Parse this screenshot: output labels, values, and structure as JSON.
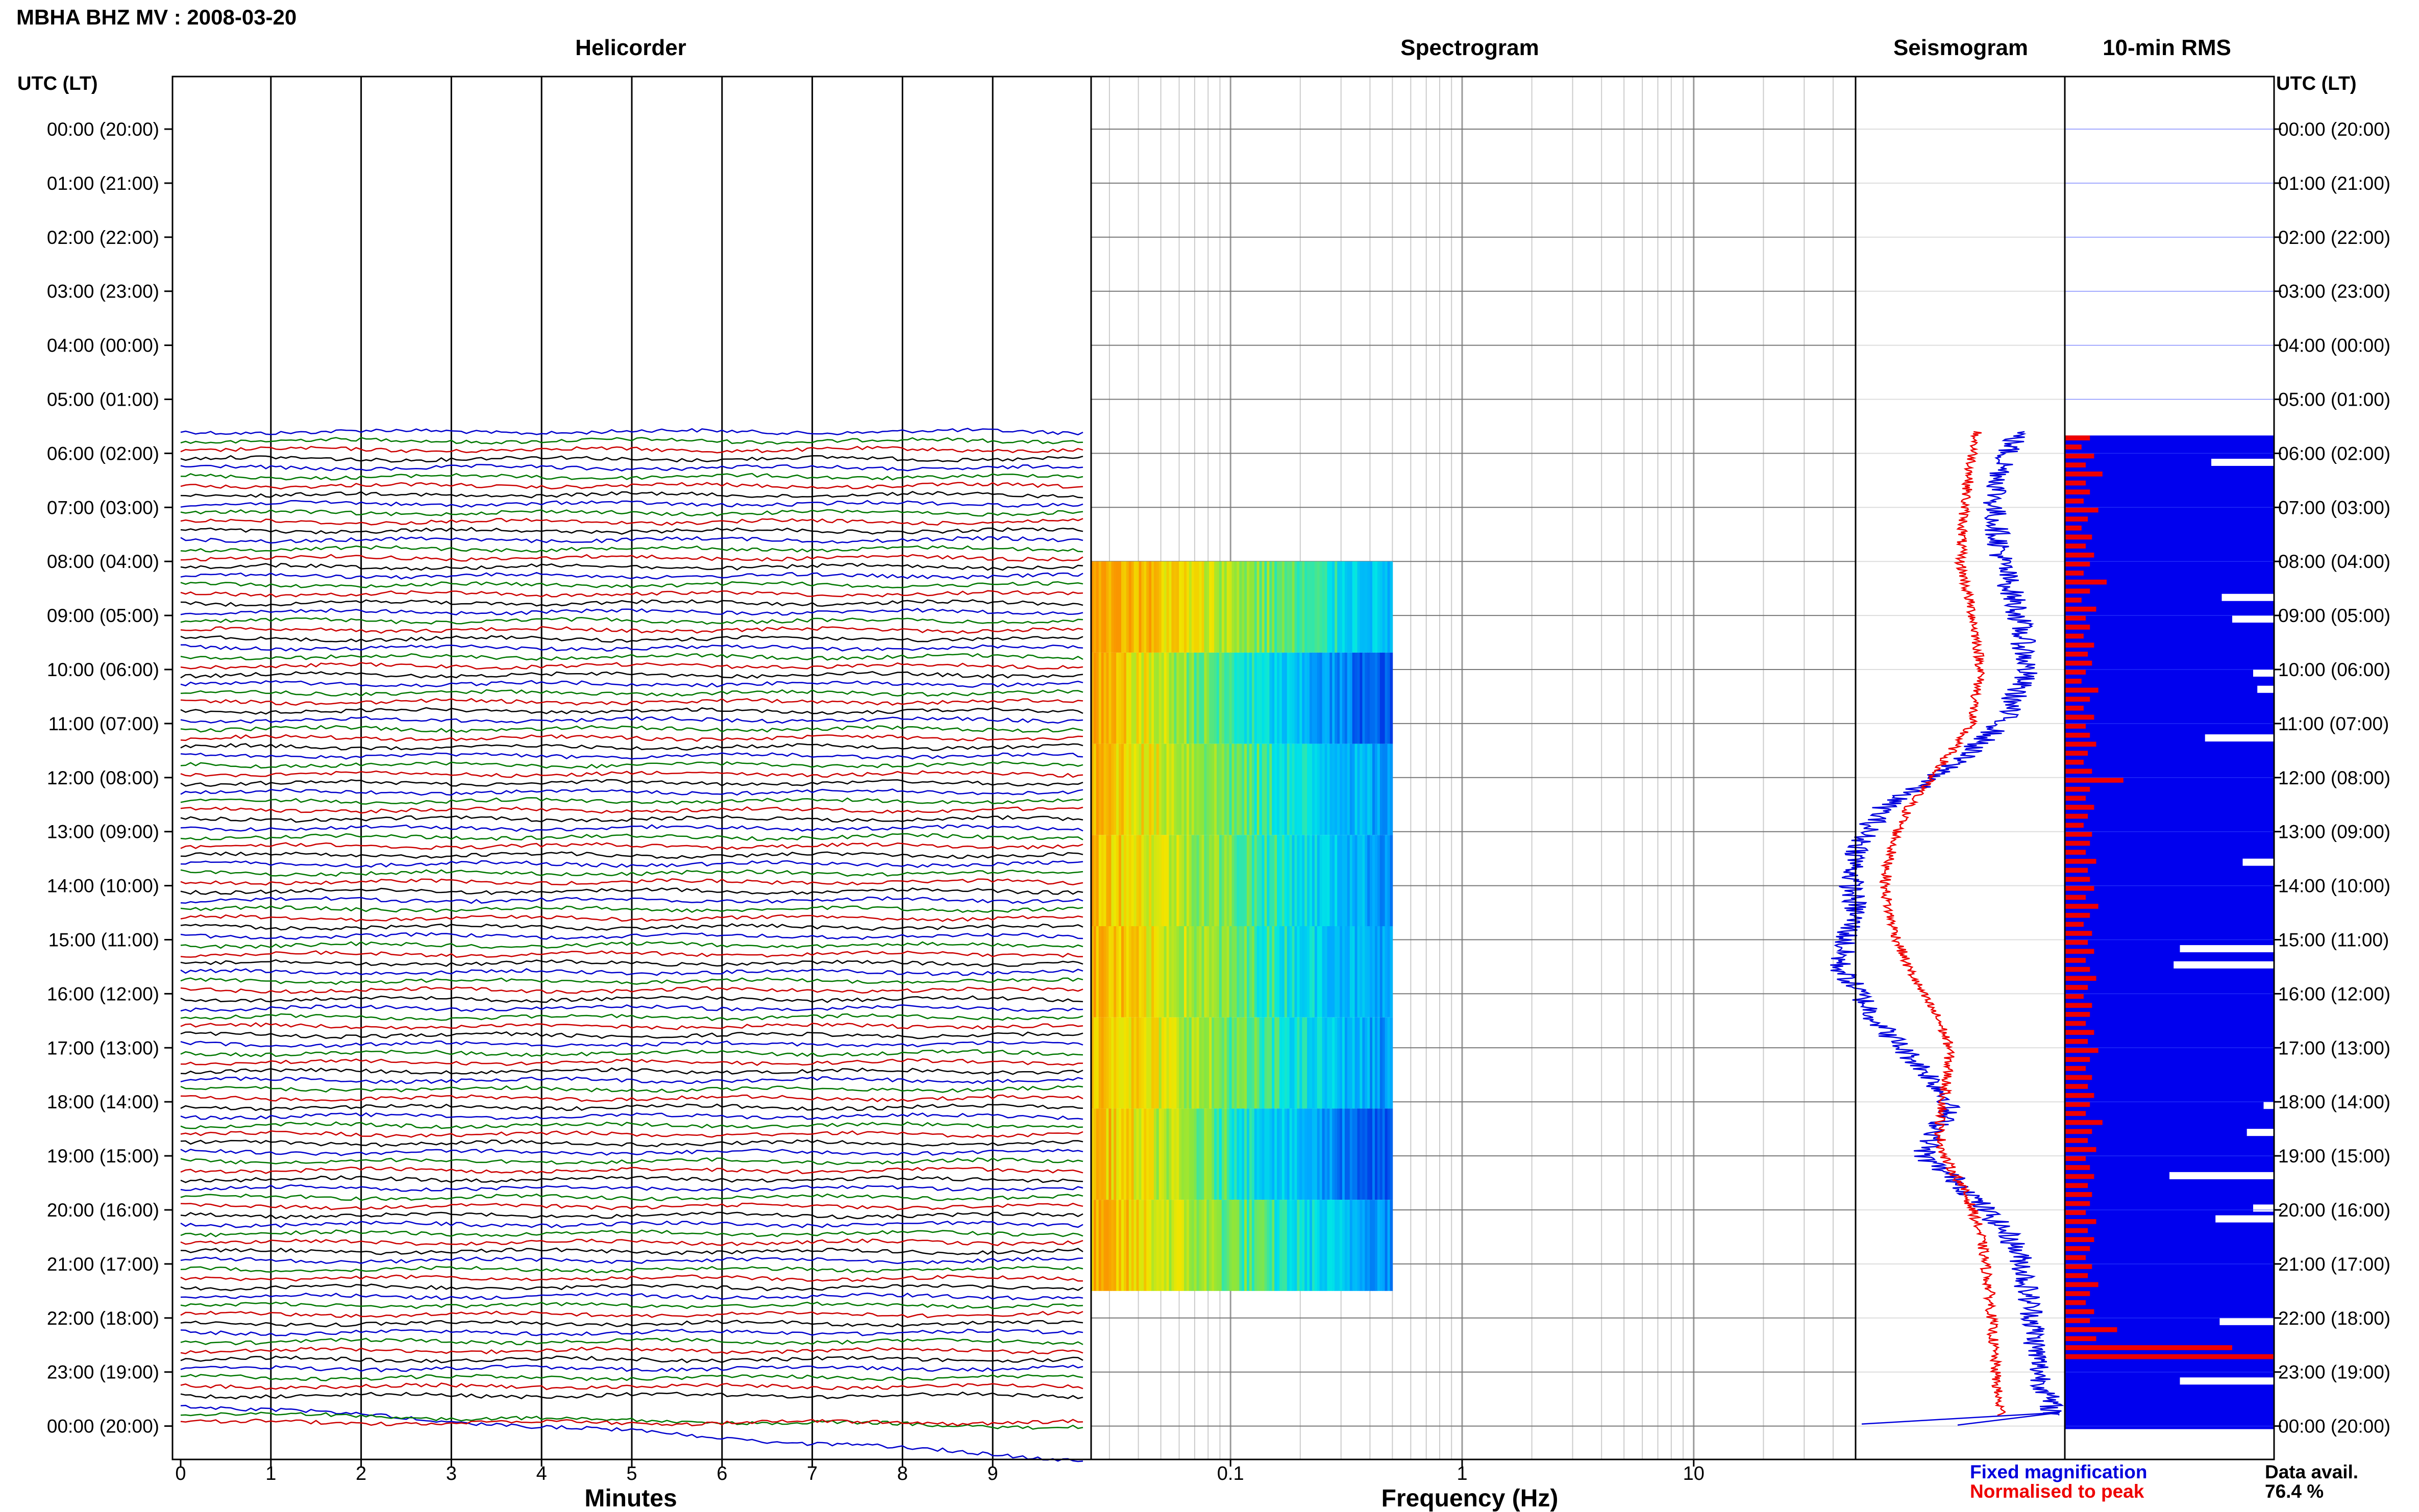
{
  "header": {
    "station_title": "MBHA BHZ MV : 2008-03-20",
    "left_axis_title": "UTC (LT)",
    "right_axis_title": "UTC (LT)"
  },
  "panels": {
    "helicorder": {
      "title": "Helicorder",
      "xlabel": "Minutes"
    },
    "spectrogram": {
      "title": "Spectrogram",
      "xlabel": "Frequency (Hz)"
    },
    "seismogram": {
      "title": "Seismogram"
    },
    "rms": {
      "title": "10-min RMS"
    }
  },
  "legend": {
    "fixed": "Fixed magnification",
    "normalised": "Normalised to peak",
    "fixed_color": "#0000dd",
    "normalised_color": "#ee0000"
  },
  "data_availability": {
    "label": "Data avail.",
    "value": "76.4 %"
  },
  "colors": {
    "helicorder_traces": [
      "#0000cc",
      "#007700",
      "#cc0000",
      "#000000"
    ],
    "rms_fill": "#0000ee",
    "rms_bar": "#ee0000",
    "grid": "#777777",
    "spectro_grid": "#cccccc"
  },
  "chart_data": {
    "type": "line",
    "time_labels": [
      "00:00 (20:00)",
      "01:00 (21:00)",
      "02:00 (22:00)",
      "03:00 (23:00)",
      "04:00 (00:00)",
      "05:00 (01:00)",
      "06:00 (02:00)",
      "07:00 (03:00)",
      "08:00 (04:00)",
      "09:00 (05:00)",
      "10:00 (06:00)",
      "11:00 (07:00)",
      "12:00 (08:00)",
      "13:00 (09:00)",
      "14:00 (10:00)",
      "15:00 (11:00)",
      "16:00 (12:00)",
      "17:00 (13:00)",
      "18:00 (14:00)",
      "19:00 (15:00)",
      "20:00 (16:00)",
      "21:00 (17:00)",
      "22:00 (18:00)",
      "23:00 (19:00)",
      "00:00 (20:00)"
    ],
    "data_start_hour": 5.6,
    "helicorder": {
      "x_ticks": [
        "0",
        "1",
        "2",
        "3",
        "4",
        "5",
        "6",
        "7",
        "8",
        "9"
      ],
      "xlim": [
        0,
        10
      ],
      "traces_per_hour": 6
    },
    "spectrogram": {
      "x_tick_labels": [
        "0.1",
        "1",
        "10"
      ],
      "xscale": "log",
      "xlim": [
        0.025,
        50
      ],
      "freq_extent_hz": [
        0.025,
        0.5
      ],
      "time_extent_hours": [
        8,
        21.5
      ],
      "block_hours": [
        8,
        9,
        10,
        11,
        12,
        13,
        14,
        15,
        16,
        17,
        18,
        19,
        20,
        21
      ]
    },
    "seismogram": {
      "series": [
        {
          "name": "Fixed magnification",
          "color": "#0000dd",
          "hours": [
            5.6,
            6,
            7,
            8,
            9,
            10,
            11,
            11.5,
            12,
            12.5,
            13,
            13.5,
            14,
            14.5,
            15,
            15.5,
            16,
            16.5,
            17,
            17.5,
            18,
            18.5,
            19,
            19.5,
            20,
            20.5,
            21,
            21.5,
            22,
            22.5,
            23,
            23.5,
            23.8
          ],
          "values": [
            0.78,
            0.72,
            0.66,
            0.7,
            0.78,
            0.82,
            0.7,
            0.55,
            0.38,
            0.15,
            0.05,
            0.0,
            -0.02,
            0.0,
            -0.05,
            -0.08,
            0.02,
            0.1,
            0.22,
            0.35,
            0.45,
            0.4,
            0.32,
            0.5,
            0.62,
            0.74,
            0.8,
            0.82,
            0.85,
            0.86,
            0.88,
            0.92,
            0.95
          ]
        },
        {
          "name": "Normalised to peak",
          "color": "#ee0000",
          "hours": [
            5.6,
            6,
            7,
            8,
            9,
            10,
            11,
            11.5,
            12,
            12.5,
            13,
            13.5,
            14,
            14.5,
            15,
            15.5,
            16,
            16.5,
            17,
            17.5,
            18,
            18.5,
            19,
            19.5,
            20,
            20.5,
            21,
            21.5,
            22,
            22.5,
            23,
            23.5,
            23.8
          ],
          "values": [
            0.58,
            0.56,
            0.52,
            0.5,
            0.56,
            0.6,
            0.55,
            0.46,
            0.36,
            0.26,
            0.2,
            0.16,
            0.14,
            0.16,
            0.2,
            0.25,
            0.32,
            0.4,
            0.45,
            0.44,
            0.42,
            0.4,
            0.42,
            0.5,
            0.56,
            0.6,
            0.62,
            0.64,
            0.65,
            0.66,
            0.67,
            0.68,
            0.7
          ]
        }
      ]
    },
    "rms": {
      "interval_minutes": 10,
      "first_hour": 6,
      "values": [
        0.12,
        0.08,
        0.14,
        0.1,
        0.18,
        0.1,
        0.12,
        0.09,
        0.16,
        0.11,
        0.08,
        0.13,
        0.1,
        0.14,
        0.12,
        0.09,
        0.2,
        0.12,
        0.08,
        0.15,
        0.1,
        0.12,
        0.09,
        0.14,
        0.11,
        0.13,
        0.1,
        0.08,
        0.16,
        0.12,
        0.09,
        0.14,
        0.1,
        0.12,
        0.15,
        0.11,
        0.09,
        0.13,
        0.28,
        0.12,
        0.1,
        0.14,
        0.11,
        0.09,
        0.13,
        0.12,
        0.1,
        0.15,
        0.11,
        0.12,
        0.14,
        0.1,
        0.16,
        0.12,
        0.09,
        0.13,
        0.11,
        0.14,
        0.1,
        0.12,
        0.15,
        0.11,
        0.09,
        0.13,
        0.12,
        0.1,
        0.14,
        0.11,
        0.16,
        0.12,
        0.1,
        0.13,
        0.11,
        0.14,
        0.12,
        0.1,
        0.18,
        0.13,
        0.11,
        0.15,
        0.1,
        0.12,
        0.14,
        0.11,
        0.13,
        0.12,
        0.1,
        0.15,
        0.11,
        0.14,
        0.12,
        0.1,
        0.13,
        0.11,
        0.16,
        0.12,
        0.1,
        0.14,
        0.12,
        0.25,
        0.15,
        0.8,
        1.0
      ]
    }
  }
}
